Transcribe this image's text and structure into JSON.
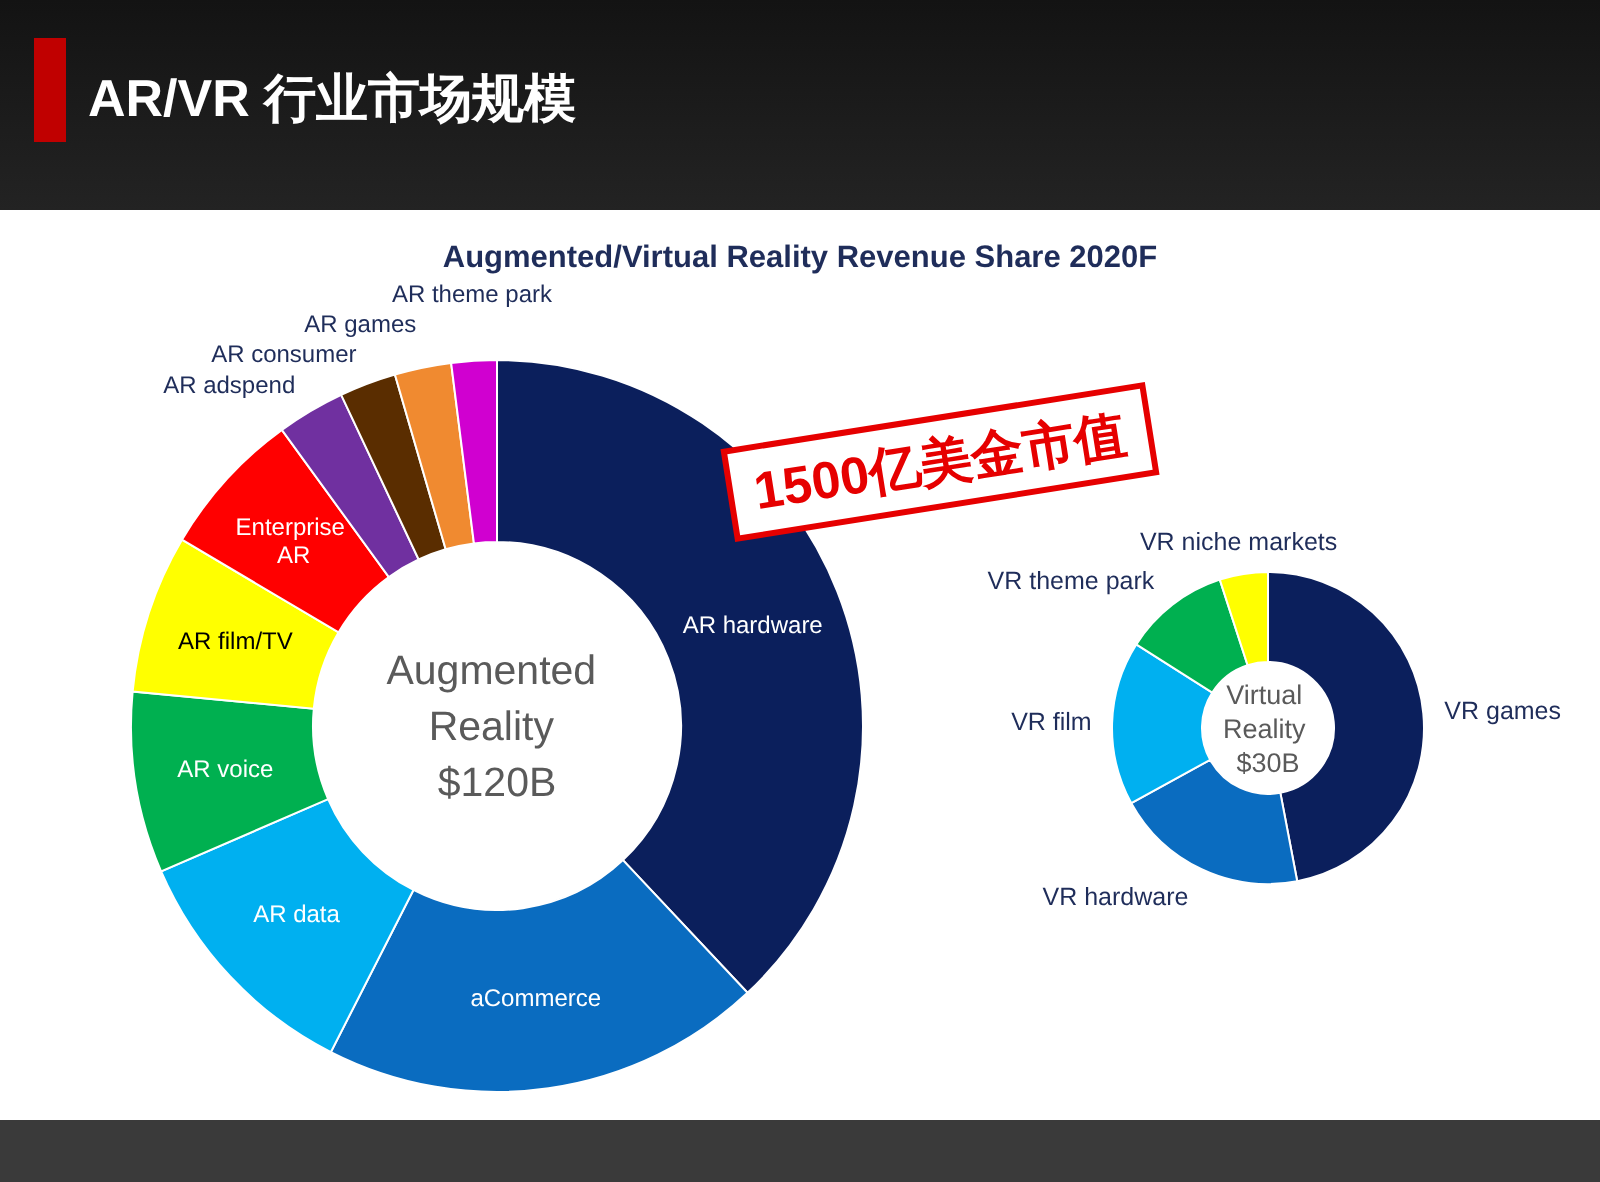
{
  "chart_data": [
    {
      "type": "donut",
      "title": "AR/VR 行业市场规模",
      "subtitle": "Augmented/Virtual Reality Revenue Share 2020F",
      "categories": [
        "AR hardware",
        "aCommerce",
        "AR data",
        "AR voice",
        "AR film/TV",
        "Enterprise\nAR",
        "AR adspend",
        "AR consumer",
        "AR games",
        "AR theme park"
      ],
      "values": [
        38,
        19.5,
        11,
        8,
        7,
        6.5,
        3,
        2.5,
        2.5,
        2
      ],
      "colors": [
        "#0b1f5c",
        "#0a6cc0",
        "#00b0f0",
        "#00b050",
        "#ffff00",
        "#ff0000",
        "#7030a0",
        "#5a2d00",
        "#f08a30",
        "#d000d0"
      ],
      "annotations": [
        "Augmented\nReality\n$120B",
        "1500亿美金市值"
      ]
    },
    {
      "type": "donut",
      "categories": [
        "VR games",
        "VR hardware",
        "VR film",
        "VR theme park",
        "VR niche markets"
      ],
      "values": [
        47,
        20,
        17,
        11,
        5
      ],
      "colors": [
        "#0b1f5c",
        "#0a6cc0",
        "#00b0f0",
        "#00b050",
        "#ffff00"
      ],
      "annotations": [
        "Virtual\nReality\n$30B"
      ]
    }
  ]
}
